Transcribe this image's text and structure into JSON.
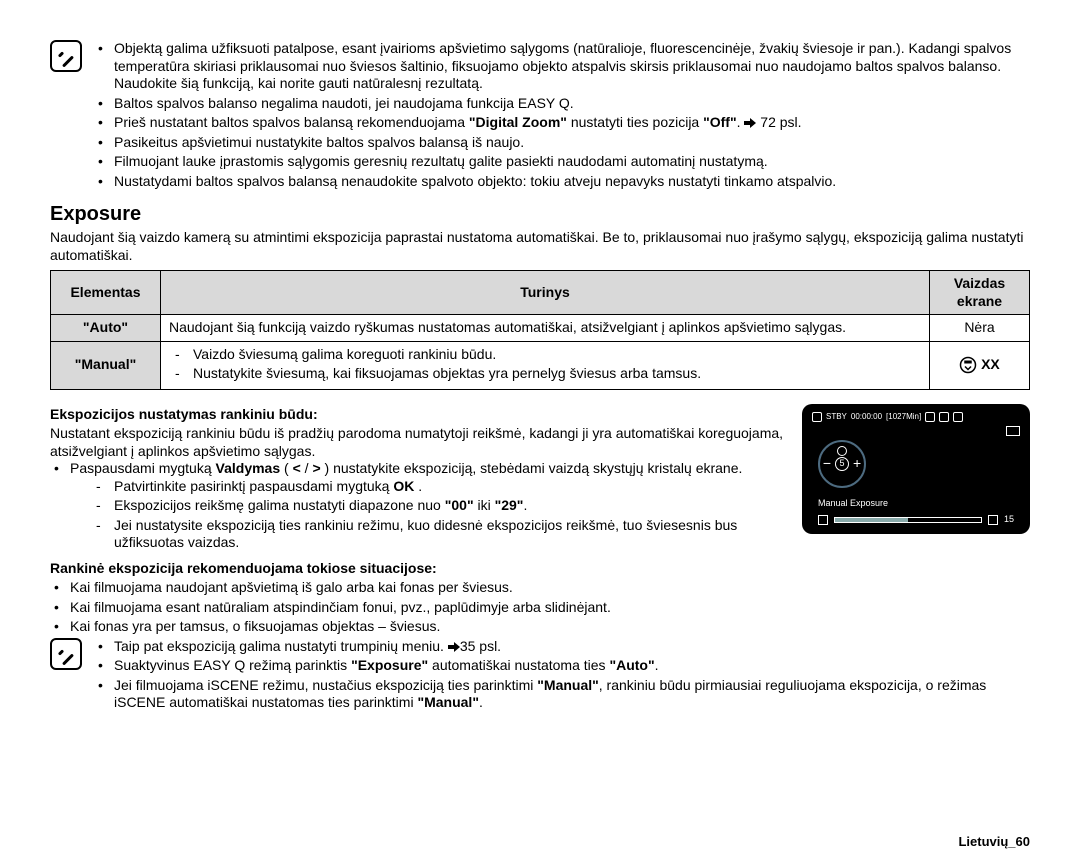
{
  "colors": {
    "text": "#000000",
    "background": "#ffffff",
    "table_header_bg": "#d9d9d9",
    "screen_bg": "#000000",
    "screen_fg": "#ffffff",
    "dial_border": "#4d6b80"
  },
  "top_note": {
    "items": [
      "Objektą galima užfiksuoti patalpose, esant įvairioms apšvietimo sąlygoms (natūralioje, fluorescencinėje, žvakių šviesoje ir pan.). Kadangi spalvos temperatūra skiriasi priklausomai nuo šviesos šaltinio, fiksuojamo objekto atspalvis skirsis priklausomai nuo naudojamo baltos spalvos balanso. Naudokite šią funkciją, kai norite gauti natūralesnį rezultatą.",
      "Baltos spalvos balanso negalima naudoti, jei naudojama funkcija EASY Q.",
      "Prieš nustatant baltos spalvos balansą rekomenduojama <b>\"Digital Zoom\"</b> nustatyti ties pozicija <b>\"Off\"</b>. ➡ 72 psl.",
      "Pasikeitus apšvietimui nustatykite baltos spalvos balansą iš naujo.",
      "Filmuojant lauke įprastomis sąlygomis geresnių rezultatų galite pasiekti naudodami automatinį nustatymą.",
      "Nustatydami baltos spalvos balansą nenaudokite spalvoto objekto: tokiu atveju nepavyks nustatyti tinkamo atspalvio."
    ]
  },
  "section": {
    "title": "Exposure",
    "intro": "Naudojant šią vaizdo kamerą su atmintimi ekspozicija paprastai nustatoma automatiškai. Be to, priklausomai nuo įrašymo sąlygų, ekspoziciją galima nustatyti automatiškai."
  },
  "table": {
    "headers": {
      "element": "Elementas",
      "content": "Turinys",
      "display": "Vaizdas ekrane"
    },
    "rows": [
      {
        "element": "\"Auto\"",
        "content": "Naudojant šią funkciją vaizdo ryškumas nustatomas automatiškai, atsižvelgiant į aplinkos apšvietimo sąlygas.",
        "display_text": "Nėra",
        "display_icon": null
      },
      {
        "element": "\"Manual\"",
        "content_items": [
          "Vaizdo šviesumą galima koreguoti rankiniu būdu.",
          "Nustatykite šviesumą, kai fiksuojamas objektas yra pernelyg šviesus arba tamsus."
        ],
        "display_text": "XX",
        "display_icon": "manual-exposure-icon"
      }
    ]
  },
  "manual_block": {
    "heading": "Ekspozicijos nustatymas rankiniu būdu:",
    "para": "Nustatant ekspoziciją rankiniu būdu iš pradžių parodoma numatytoji reikšmė, kadangi ji yra automatiškai koreguojama, atsižvelgiant į aplinkos apšvietimo sąlygas.",
    "bullet_html": "Paspausdami mygtuką <b>Valdymas</b> ( <span class='chev'>&lt;</span> / <span class='chev'>&gt;</span> ) nustatykite ekspoziciją, stebėdami vaizdą skystųjų kristalų ekrane.",
    "sub_items": [
      "Patvirtinkite pasirinktį paspausdami mygtuką <b>OK</b> .",
      "Ekspozicijos reikšmę galima nustatyti diapazone nuo <b>\"00\"</b> iki <b>\"29\"</b>.",
      "Jei nustatysite ekspoziciją ties rankiniu režimu, kuo didesnė ekspozicijos reikšmė, tuo šviesesnis bus užfiksuotas vaizdas."
    ]
  },
  "screen": {
    "status": "STBY",
    "time": "00:00:00",
    "remain": "[1027Min]",
    "label": "Manual Exposure",
    "value": "15",
    "dial_center": "5"
  },
  "recommended": {
    "heading": "Rankinė ekspozicija rekomenduojama tokiose situacijose:",
    "items": [
      "Kai filmuojama naudojant apšvietimą iš galo arba kai fonas per šviesus.",
      "Kai filmuojama esant natūraliam atspindinčiam fonui, pvz., paplūdimyje arba slidinėjant.",
      "Kai fonas yra per tamsus, o fiksuojamas objektas – šviesus."
    ]
  },
  "bottom_note": {
    "items": [
      "Taip pat ekspoziciją galima nustatyti trumpinių meniu. ➡35 psl.",
      "Suaktyvinus EASY Q režimą parinktis <b>\"Exposure\"</b> automatiškai nustatoma ties <b>\"Auto\"</b>.",
      "Jei filmuojama iSCENE režimu, nustačius ekspoziciją ties parinktimi <b>\"Manual\"</b>, rankiniu būdu pirmiausiai reguliuojama ekspozicija, o režimas iSCENE automatiškai nustatomas ties parinktimi <b>\"Manual\"</b>."
    ]
  },
  "footer": "Lietuvių_60"
}
